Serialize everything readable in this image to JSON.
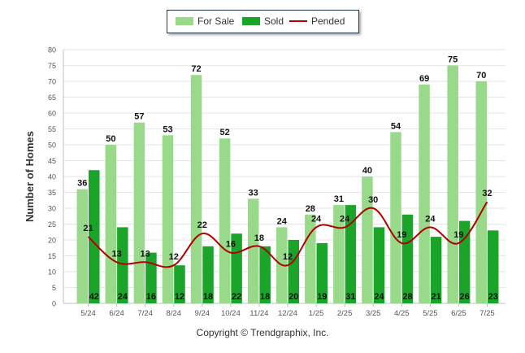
{
  "chart_data": {
    "type": "bar",
    "categories": [
      "5/24",
      "6/24",
      "7/24",
      "8/24",
      "9/24",
      "10/24",
      "11/24",
      "12/24",
      "1/25",
      "2/25",
      "3/25",
      "4/25",
      "5/25",
      "6/25",
      "7/25"
    ],
    "series": [
      {
        "name": "For Sale",
        "type": "bar",
        "color": "#99d98a",
        "values": [
          36,
          50,
          57,
          53,
          72,
          52,
          33,
          24,
          28,
          31,
          40,
          54,
          69,
          75,
          70
        ]
      },
      {
        "name": "Sold",
        "type": "bar",
        "color": "#1aa52a",
        "values": [
          42,
          24,
          16,
          12,
          18,
          22,
          18,
          20,
          19,
          31,
          24,
          28,
          21,
          26,
          23
        ]
      },
      {
        "name": "Pended",
        "type": "line",
        "color": "#b00000",
        "values": [
          21,
          13,
          13,
          12,
          22,
          16,
          18,
          12,
          24,
          24,
          30,
          19,
          24,
          19,
          32
        ]
      }
    ],
    "ylabel": "Number of Homes",
    "xlabel": "",
    "ylim": [
      0,
      80
    ],
    "yticks": [
      0,
      5,
      10,
      15,
      20,
      25,
      30,
      35,
      40,
      45,
      50,
      55,
      60,
      65,
      70,
      75,
      80
    ],
    "grid": true,
    "legend_position": "top-center"
  },
  "legend": {
    "for_sale": "For Sale",
    "sold": "Sold",
    "pended": "Pended"
  },
  "footer": "Copyright © Trendgraphix, Inc."
}
